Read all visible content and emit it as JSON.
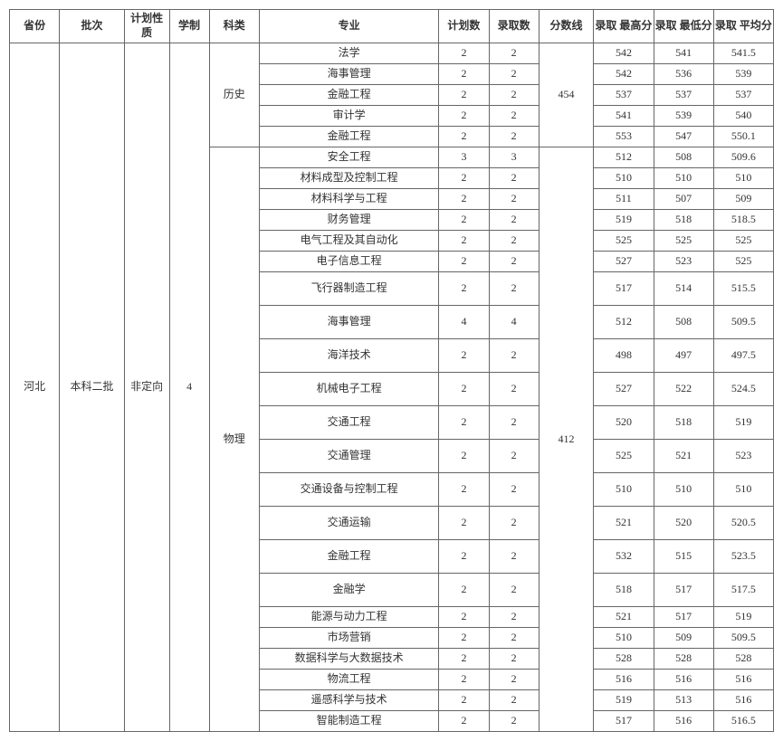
{
  "headers": {
    "province": "省份",
    "batch": "批次",
    "plantype": "计划性\n质",
    "years": "学制",
    "category": "科类",
    "major": "专业",
    "plannum": "计划数",
    "admitnum": "录取数",
    "scoreline": "分数线",
    "max": "录取\n最高分",
    "min": "录取\n最低分",
    "avg": "录取\n平均分"
  },
  "province": "河北",
  "batch": "本科二批",
  "plantype": "非定向",
  "years": "4",
  "categories": [
    {
      "name": "历史",
      "scoreline": "454",
      "rows": [
        {
          "major": "法学",
          "plan": "2",
          "admit": "2",
          "max": "542",
          "min": "541",
          "avg": "541.5",
          "tall": false
        },
        {
          "major": "海事管理",
          "plan": "2",
          "admit": "2",
          "max": "542",
          "min": "536",
          "avg": "539",
          "tall": false
        },
        {
          "major": "金融工程",
          "plan": "2",
          "admit": "2",
          "max": "537",
          "min": "537",
          "avg": "537",
          "tall": false
        },
        {
          "major": "审计学",
          "plan": "2",
          "admit": "2",
          "max": "541",
          "min": "539",
          "avg": "540",
          "tall": false
        },
        {
          "major": "金融工程",
          "plan": "2",
          "admit": "2",
          "max": "553",
          "min": "547",
          "avg": "550.1",
          "tall": false
        }
      ]
    },
    {
      "name": "物理",
      "scoreline": "412",
      "rows": [
        {
          "major": "安全工程",
          "plan": "3",
          "admit": "3",
          "max": "512",
          "min": "508",
          "avg": "509.6",
          "tall": false
        },
        {
          "major": "材料成型及控制工程",
          "plan": "2",
          "admit": "2",
          "max": "510",
          "min": "510",
          "avg": "510",
          "tall": false
        },
        {
          "major": "材料科学与工程",
          "plan": "2",
          "admit": "2",
          "max": "511",
          "min": "507",
          "avg": "509",
          "tall": false
        },
        {
          "major": "财务管理",
          "plan": "2",
          "admit": "2",
          "max": "519",
          "min": "518",
          "avg": "518.5",
          "tall": false
        },
        {
          "major": "电气工程及其自动化",
          "plan": "2",
          "admit": "2",
          "max": "525",
          "min": "525",
          "avg": "525",
          "tall": false
        },
        {
          "major": "电子信息工程",
          "plan": "2",
          "admit": "2",
          "max": "527",
          "min": "523",
          "avg": "525",
          "tall": false
        },
        {
          "major": "飞行器制造工程",
          "plan": "2",
          "admit": "2",
          "max": "517",
          "min": "514",
          "avg": "515.5",
          "tall": true
        },
        {
          "major": "海事管理",
          "plan": "4",
          "admit": "4",
          "max": "512",
          "min": "508",
          "avg": "509.5",
          "tall": true
        },
        {
          "major": "海洋技术",
          "plan": "2",
          "admit": "2",
          "max": "498",
          "min": "497",
          "avg": "497.5",
          "tall": true
        },
        {
          "major": "机械电子工程",
          "plan": "2",
          "admit": "2",
          "max": "527",
          "min": "522",
          "avg": "524.5",
          "tall": true
        },
        {
          "major": "交通工程",
          "plan": "2",
          "admit": "2",
          "max": "520",
          "min": "518",
          "avg": "519",
          "tall": true
        },
        {
          "major": "交通管理",
          "plan": "2",
          "admit": "2",
          "max": "525",
          "min": "521",
          "avg": "523",
          "tall": true
        },
        {
          "major": "交通设备与控制工程",
          "plan": "2",
          "admit": "2",
          "max": "510",
          "min": "510",
          "avg": "510",
          "tall": true
        },
        {
          "major": "交通运输",
          "plan": "2",
          "admit": "2",
          "max": "521",
          "min": "520",
          "avg": "520.5",
          "tall": true
        },
        {
          "major": "金融工程",
          "plan": "2",
          "admit": "2",
          "max": "532",
          "min": "515",
          "avg": "523.5",
          "tall": true
        },
        {
          "major": "金融学",
          "plan": "2",
          "admit": "2",
          "max": "518",
          "min": "517",
          "avg": "517.5",
          "tall": true
        },
        {
          "major": "能源与动力工程",
          "plan": "2",
          "admit": "2",
          "max": "521",
          "min": "517",
          "avg": "519",
          "tall": false
        },
        {
          "major": "市场营销",
          "plan": "2",
          "admit": "2",
          "max": "510",
          "min": "509",
          "avg": "509.5",
          "tall": false
        },
        {
          "major": "数据科学与大数据技术",
          "plan": "2",
          "admit": "2",
          "max": "528",
          "min": "528",
          "avg": "528",
          "tall": false
        },
        {
          "major": "物流工程",
          "plan": "2",
          "admit": "2",
          "max": "516",
          "min": "516",
          "avg": "516",
          "tall": false
        },
        {
          "major": "遥感科学与技术",
          "plan": "2",
          "admit": "2",
          "max": "519",
          "min": "513",
          "avg": "516",
          "tall": false
        },
        {
          "major": "智能制造工程",
          "plan": "2",
          "admit": "2",
          "max": "517",
          "min": "516",
          "avg": "516.5",
          "tall": false
        }
      ]
    }
  ],
  "colors": {
    "border": "#666666",
    "text": "#333333",
    "background": "#ffffff"
  }
}
